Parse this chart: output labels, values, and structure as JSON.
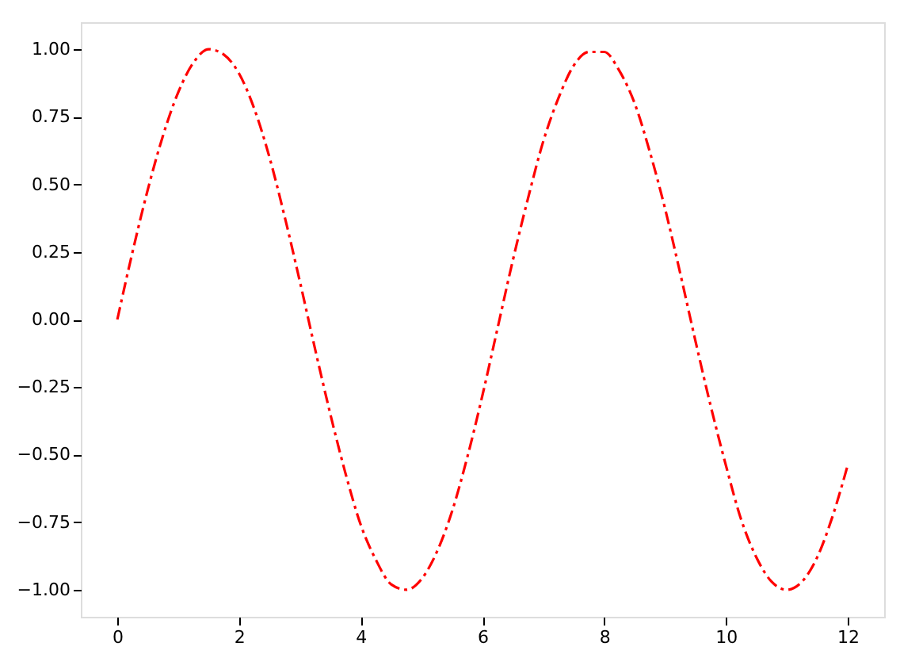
{
  "chart_data": {
    "type": "line",
    "x": [
      0,
      0.25,
      0.5,
      0.75,
      1,
      1.25,
      1.5,
      1.75,
      2,
      2.25,
      2.5,
      2.75,
      3,
      3.25,
      3.5,
      3.75,
      4,
      4.25,
      4.5,
      4.75,
      5,
      5.25,
      5.5,
      5.75,
      6,
      6.25,
      6.5,
      6.75,
      7,
      7.25,
      7.5,
      7.75,
      8,
      8.25,
      8.5,
      8.75,
      9,
      9.25,
      9.5,
      9.75,
      10,
      10.25,
      10.5,
      10.75,
      11,
      11.25,
      11.5,
      11.75,
      12
    ],
    "series": [
      {
        "color": "#ff0000",
        "values": [
          0,
          0.25,
          0.48,
          0.68,
          0.84,
          0.95,
          1.0,
          0.98,
          0.91,
          0.78,
          0.6,
          0.38,
          0.14,
          -0.11,
          -0.35,
          -0.57,
          -0.76,
          -0.89,
          -0.98,
          -1.0,
          -0.96,
          -0.86,
          -0.71,
          -0.51,
          -0.28,
          -0.03,
          0.22,
          0.45,
          0.66,
          0.82,
          0.94,
          0.99,
          0.99,
          0.92,
          0.8,
          0.62,
          0.41,
          0.17,
          -0.08,
          -0.32,
          -0.54,
          -0.74,
          -0.88,
          -0.97,
          -1.0,
          -0.97,
          -0.88,
          -0.73,
          -0.54
        ]
      }
    ],
    "xlim": [
      -0.6,
      12.6
    ],
    "xticks": [
      0,
      2,
      4,
      6,
      8,
      10,
      12
    ],
    "ylim": [
      -1.1,
      1.1
    ],
    "yticks": [
      {
        "value": -1,
        "label": "−1.00"
      },
      {
        "value": -0.75,
        "label": "−0.75"
      },
      {
        "value": -0.5,
        "label": "−0.50"
      },
      {
        "value": -0.25,
        "label": "−0.25"
      },
      {
        "value": 0,
        "label": "0.00"
      },
      {
        "value": 0.25,
        "label": "0.25"
      },
      {
        "value": 0.5,
        "label": "0.50"
      },
      {
        "value": 0.75,
        "label": "0.75"
      },
      {
        "value": 1,
        "label": "1.00"
      }
    ],
    "grid": false,
    "marker": "none",
    "line_style": "dashed"
  }
}
